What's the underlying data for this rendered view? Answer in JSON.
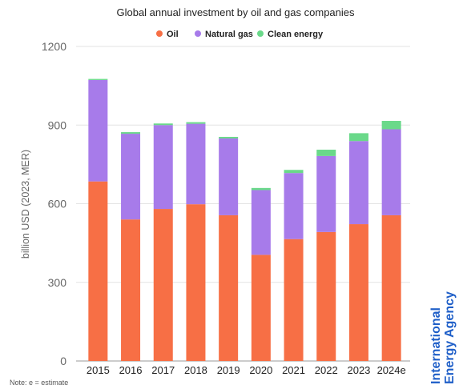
{
  "chart_data": {
    "type": "bar",
    "stacked": true,
    "title": "Global annual investment by oil and gas companies",
    "ylabel": "billion USD (2023, MER)",
    "xlabel": "",
    "ylim": [
      0,
      1200
    ],
    "yticks": [
      0,
      300,
      600,
      900,
      1200
    ],
    "grid": true,
    "legend_position": "top-center",
    "categories": [
      "2015",
      "2016",
      "2017",
      "2018",
      "2019",
      "2020",
      "2021",
      "2022",
      "2023",
      "2024e"
    ],
    "series": [
      {
        "name": "Oil",
        "color": "#f76f45",
        "values": [
          685,
          540,
          580,
          598,
          556,
          405,
          465,
          492,
          522,
          556
        ]
      },
      {
        "name": "Natural gas",
        "color": "#a77bea",
        "values": [
          387,
          327,
          320,
          307,
          293,
          247,
          252,
          290,
          317,
          328
        ]
      },
      {
        "name": "Clean energy",
        "color": "#6ad98a",
        "values": [
          4,
          6,
          6,
          6,
          6,
          8,
          12,
          24,
          30,
          32
        ]
      }
    ],
    "note": "Note: e = estimate"
  },
  "brand": {
    "line1": "International",
    "line2": "Energy Agency",
    "color": "#1f5fc8"
  }
}
